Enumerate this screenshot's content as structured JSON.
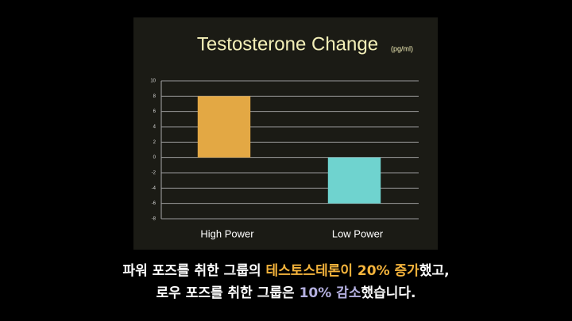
{
  "chart_data": {
    "type": "bar",
    "title": "Testosterone Change",
    "unit_label": "(pg/ml)",
    "categories": [
      "High Power",
      "Low Power"
    ],
    "values": [
      8,
      -6
    ],
    "colors": [
      "#e3a844",
      "#6fd3cf"
    ],
    "ylim": [
      -8,
      10
    ],
    "yticks": [
      10,
      8,
      6,
      4,
      2,
      0,
      -2,
      -4,
      -6,
      -8
    ],
    "grid": true
  },
  "subtitles": [
    [
      {
        "text": "파워 포즈를 취한 그룹의 "
      },
      {
        "text": "테스토스테론이 20% 증가",
        "color": "#f5b43c"
      },
      {
        "text": "했고,"
      }
    ],
    [
      {
        "text": "로우 포즈를 취한 그룹은 "
      },
      {
        "text": "10% 감소",
        "color": "#b4b0e0"
      },
      {
        "text": "했습니다."
      }
    ]
  ]
}
